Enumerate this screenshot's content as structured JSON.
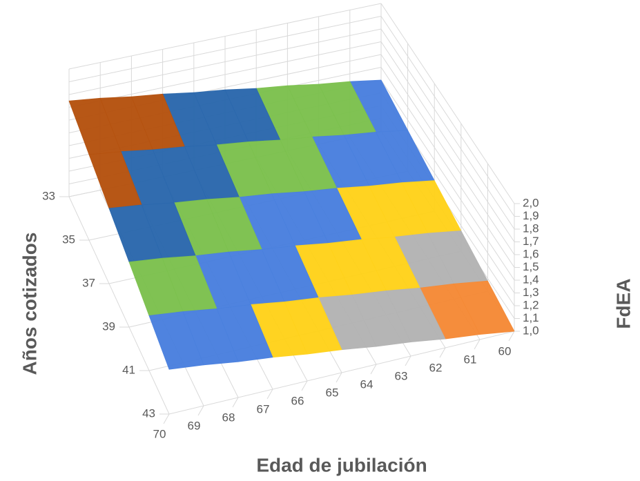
{
  "chart_data": {
    "type": "surface",
    "x_label": "Edad de jubilación",
    "y_label": "Años cotizados",
    "z_label": "FdEA",
    "x_categories": [
      60,
      61,
      62,
      63,
      64,
      65,
      66,
      67,
      68,
      69,
      70
    ],
    "y_categories": [
      33,
      35,
      37,
      39,
      41,
      43
    ],
    "values": [
      [
        1.4,
        1.44,
        1.47,
        1.51,
        1.54,
        1.58,
        1.61,
        1.65,
        1.68,
        1.72,
        1.75
      ],
      [
        1.32,
        1.36,
        1.39,
        1.43,
        1.46,
        1.5,
        1.53,
        1.57,
        1.6,
        1.64,
        1.67
      ],
      [
        1.24,
        1.28,
        1.31,
        1.35,
        1.38,
        1.42,
        1.45,
        1.49,
        1.52,
        1.56,
        1.59
      ],
      [
        1.16,
        1.2,
        1.23,
        1.27,
        1.3,
        1.34,
        1.37,
        1.41,
        1.44,
        1.48,
        1.51
      ],
      [
        1.08,
        1.12,
        1.15,
        1.19,
        1.22,
        1.26,
        1.29,
        1.33,
        1.36,
        1.4,
        1.43
      ],
      [
        1.0,
        1.04,
        1.07,
        1.11,
        1.14,
        1.18,
        1.21,
        1.25,
        1.28,
        1.32,
        1.35
      ]
    ],
    "zlim": [
      1.0,
      2.0
    ],
    "zticks": [
      {
        "value": 1.0,
        "label": "1,0"
      },
      {
        "value": 1.1,
        "label": "1,1"
      },
      {
        "value": 1.2,
        "label": "1,2"
      },
      {
        "value": 1.3,
        "label": "1,3"
      },
      {
        "value": 1.4,
        "label": "1,4"
      },
      {
        "value": 1.5,
        "label": "1,5"
      },
      {
        "value": 1.6,
        "label": "1,6"
      },
      {
        "value": 1.7,
        "label": "1,7"
      },
      {
        "value": 1.8,
        "label": "1,8"
      },
      {
        "value": 1.9,
        "label": "1,9"
      },
      {
        "value": 2.0,
        "label": "2,0"
      }
    ],
    "band_colors": [
      "#f58a36",
      "#b3b3b3",
      "#ffd21a",
      "#4a80de",
      "#7cc14e",
      "#2b68ad",
      "#b5520f",
      "#6e6e6e",
      "#c99400",
      "#5a8fd0"
    ],
    "grid": true
  }
}
